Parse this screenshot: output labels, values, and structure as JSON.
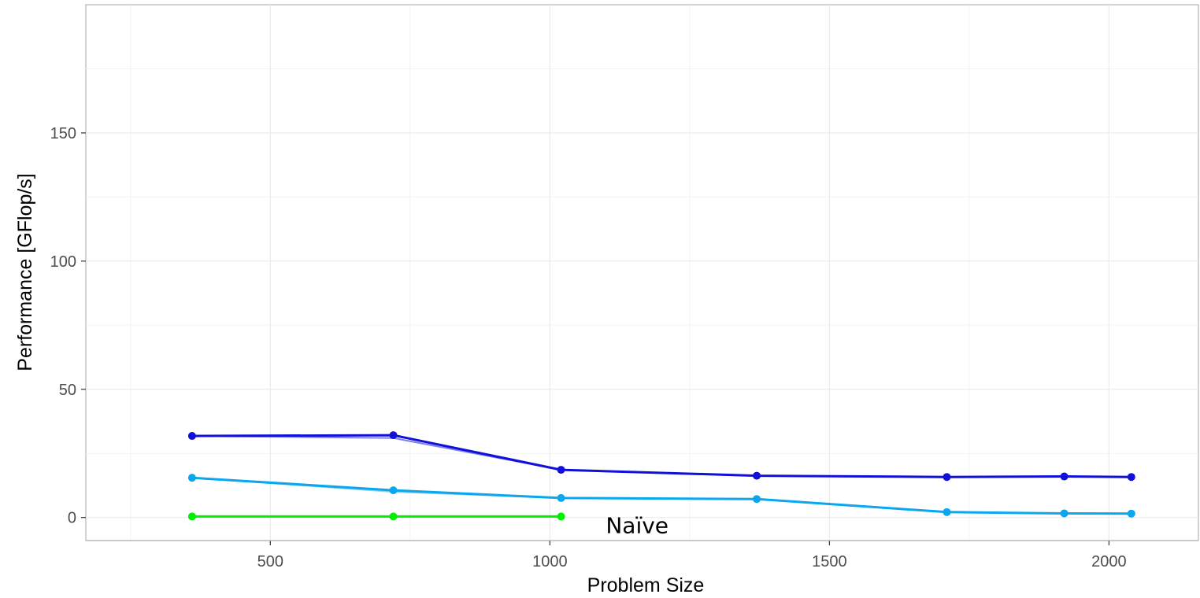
{
  "chart_data": {
    "type": "line",
    "title": "",
    "xlabel": "Problem Size",
    "ylabel": "Performance [GFlop/s]",
    "xlim": [
      170,
      2160
    ],
    "ylim": [
      -9,
      200
    ],
    "x_ticks": [
      500,
      1000,
      1500,
      2000
    ],
    "y_ticks": [
      0,
      50,
      100,
      150
    ],
    "x_minor_ticks": [
      250,
      750,
      1250,
      1750
    ],
    "y_minor_ticks": [
      25,
      75,
      125,
      175
    ],
    "grid": true,
    "legend": "none",
    "series": [
      {
        "color": "#8080f0",
        "width": 2,
        "markers": false,
        "x": [
          360,
          720,
          1020
        ],
        "y": [
          31.8,
          31.0,
          18.6
        ]
      },
      {
        "color": "#1010d8",
        "width": 3,
        "markers": true,
        "x": [
          360,
          720,
          1020,
          1370,
          1710,
          1920,
          2040
        ],
        "y": [
          31.8,
          32.1,
          18.6,
          16.3,
          15.8,
          16.0,
          15.8
        ]
      },
      {
        "color": "#90d0f0",
        "width": 2,
        "markers": false,
        "x": [
          360,
          720,
          1020
        ],
        "y": [
          15.5,
          10.0,
          7.6
        ]
      },
      {
        "color": "#0aa6ee",
        "width": 3,
        "markers": true,
        "x": [
          360,
          720,
          1020,
          1370,
          1710,
          1920,
          2040
        ],
        "y": [
          15.5,
          10.6,
          7.6,
          7.2,
          2.1,
          1.6,
          1.5
        ]
      },
      {
        "color": "#00f000",
        "width": 3,
        "markers": true,
        "x": [
          360,
          720,
          1020
        ],
        "y": [
          0.4,
          0.4,
          0.4
        ]
      }
    ],
    "annotations": [
      {
        "text": "Naïve",
        "x": 1100,
        "y": -3
      }
    ]
  }
}
